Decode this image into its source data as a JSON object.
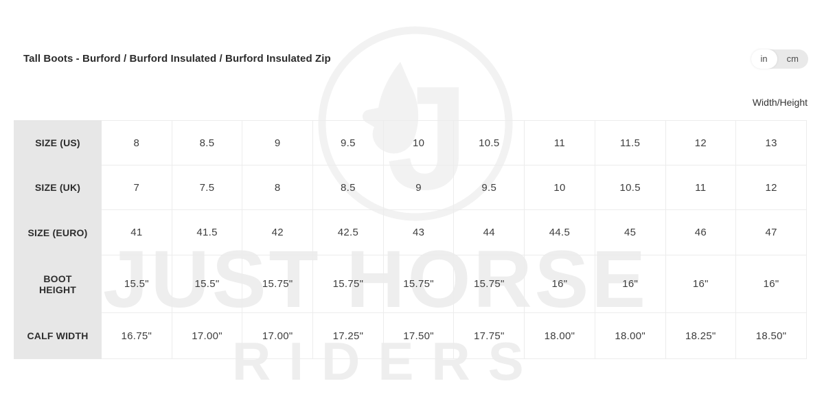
{
  "header": {
    "title": "Tall Boots - Burford / Burford Insulated / Burford Insulated Zip",
    "unit_toggle": {
      "options": [
        "in",
        "cm"
      ],
      "selected": "in"
    },
    "axis_label": "Width/Height"
  },
  "table": {
    "rows": [
      {
        "label": "SIZE (US)",
        "values": [
          "8",
          "8.5",
          "9",
          "9.5",
          "10",
          "10.5",
          "11",
          "11.5",
          "12",
          "13"
        ]
      },
      {
        "label": "SIZE (UK)",
        "values": [
          "7",
          "7.5",
          "8",
          "8.5",
          "9",
          "9.5",
          "10",
          "10.5",
          "11",
          "12"
        ]
      },
      {
        "label": "SIZE (EURO)",
        "values": [
          "41",
          "41.5",
          "42",
          "42.5",
          "43",
          "44",
          "44.5",
          "45",
          "46",
          "47"
        ]
      },
      {
        "label": "BOOT\nHEIGHT",
        "values": [
          "15.5\"",
          "15.5\"",
          "15.75\"",
          "15.75\"",
          "15.75\"",
          "15.75\"",
          "16\"",
          "16\"",
          "16\"",
          "16\""
        ]
      },
      {
        "label": "CALF WIDTH",
        "values": [
          "16.75\"",
          "17.00\"",
          "17.00\"",
          "17.25\"",
          "17.50\"",
          "17.75\"",
          "18.00\"",
          "18.00\"",
          "18.25\"",
          "18.50\""
        ]
      }
    ]
  },
  "watermark": {
    "line1": "JUST HORSE",
    "line2": "RIDERS",
    "logo": "horse-j-circle-logo"
  },
  "colors": {
    "header_column_bg": "#e7e7e7",
    "table_border": "#ececec",
    "toggle_track": "#e9e9e9",
    "toggle_selected": "#ffffff",
    "watermark": "#eeeeee",
    "text": "#2b2b2b"
  }
}
